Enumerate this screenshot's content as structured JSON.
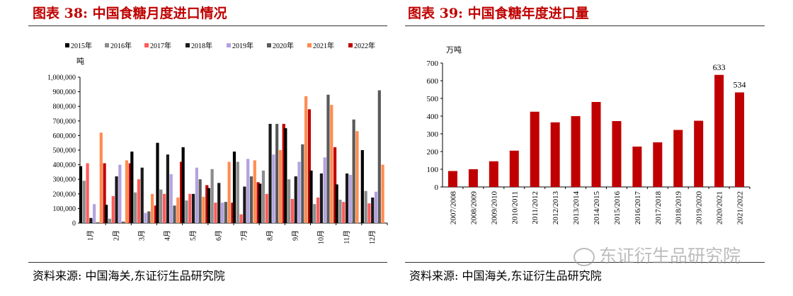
{
  "left": {
    "title": "图表 38:  中国食糖月度进口情况",
    "source": "资料来源:  中国海关,东证衍生品研究院"
  },
  "right": {
    "title": "图表 39:    中国食糖年度进口量",
    "source": "资料来源:  中国海关,东证衍生品研究院"
  },
  "watermark": "东证衍生品研究院",
  "colors": {
    "title": "#c00000"
  },
  "chart_data": [
    {
      "type": "bar",
      "title": "中国食糖月度进口情况",
      "ylabel": "吨",
      "ylim": [
        0,
        1000000
      ],
      "yticks": [
        "0",
        "100,000",
        "200,000",
        "300,000",
        "400,000",
        "500,000",
        "600,000",
        "700,000",
        "800,000",
        "900,000",
        "1,000,000"
      ],
      "categories": [
        "1月",
        "2月",
        "3月",
        "4月",
        "5月",
        "6月",
        "7月",
        "8月",
        "9月",
        "10月",
        "11月",
        "12月"
      ],
      "series": [
        {
          "name": "2015年",
          "color": "#000000",
          "values": [
            390000,
            125000,
            490000,
            550000,
            520000,
            240000,
            490000,
            270000,
            650000,
            360000,
            265000,
            500000
          ]
        },
        {
          "name": "2016年",
          "color": "#8c8c8c",
          "values": [
            290000,
            30000,
            210000,
            230000,
            155000,
            370000,
            420000,
            360000,
            300000,
            130000,
            160000,
            220000
          ]
        },
        {
          "name": "2017年",
          "color": "#ff5b5b",
          "values": [
            410000,
            185000,
            300000,
            200000,
            200000,
            140000,
            60000,
            200000,
            165000,
            175000,
            145000,
            135000
          ]
        },
        {
          "name": "2018年",
          "color": "#1a1a1a",
          "values": [
            35000,
            320000,
            380000,
            470000,
            200000,
            275000,
            250000,
            680000,
            320000,
            340000,
            340000,
            175000
          ]
        },
        {
          "name": "2019年",
          "color": "#b3a2e0",
          "values": [
            130000,
            400000,
            70000,
            335000,
            380000,
            140000,
            440000,
            470000,
            420000,
            450000,
            330000,
            215000
          ]
        },
        {
          "name": "2020年",
          "color": "#5a5a5a",
          "values": [
            5000,
            10000,
            80000,
            120000,
            300000,
            145000,
            320000,
            680000,
            540000,
            880000,
            710000,
            910000
          ]
        },
        {
          "name": "2021年",
          "color": "#ff8c50",
          "values": [
            620000,
            430000,
            200000,
            175000,
            180000,
            420000,
            430000,
            500000,
            870000,
            810000,
            630000,
            400000
          ]
        },
        {
          "name": "2022年",
          "color": "#c00000",
          "values": [
            410000,
            410000,
            120000,
            420000,
            260000,
            140000,
            280000,
            680000,
            780000,
            520000,
            0,
            0
          ]
        }
      ]
    },
    {
      "type": "bar",
      "title": "中国食糖年度进口量",
      "ylabel": "万吨",
      "ylim": [
        0,
        700
      ],
      "yticks": [
        "0",
        "100",
        "200",
        "300",
        "400",
        "500",
        "600",
        "700"
      ],
      "categories": [
        "2007/2008",
        "2008/2009",
        "2009/2010",
        "2010/2011",
        "2011/2012",
        "2012/2013",
        "2013/2014",
        "2014/2015",
        "2015/2016",
        "2016/2017",
        "2017/2018",
        "2018/2019",
        "2019/2020",
        "2020/2021",
        "2021/2022"
      ],
      "values": [
        90,
        100,
        145,
        205,
        425,
        365,
        400,
        480,
        372,
        228,
        252,
        322,
        374,
        633,
        534
      ],
      "data_labels": [
        "",
        "",
        "",
        "",
        "",
        "",
        "",
        "",
        "",
        "",
        "",
        "",
        "",
        "633",
        "534"
      ],
      "color": "#c00000"
    }
  ]
}
